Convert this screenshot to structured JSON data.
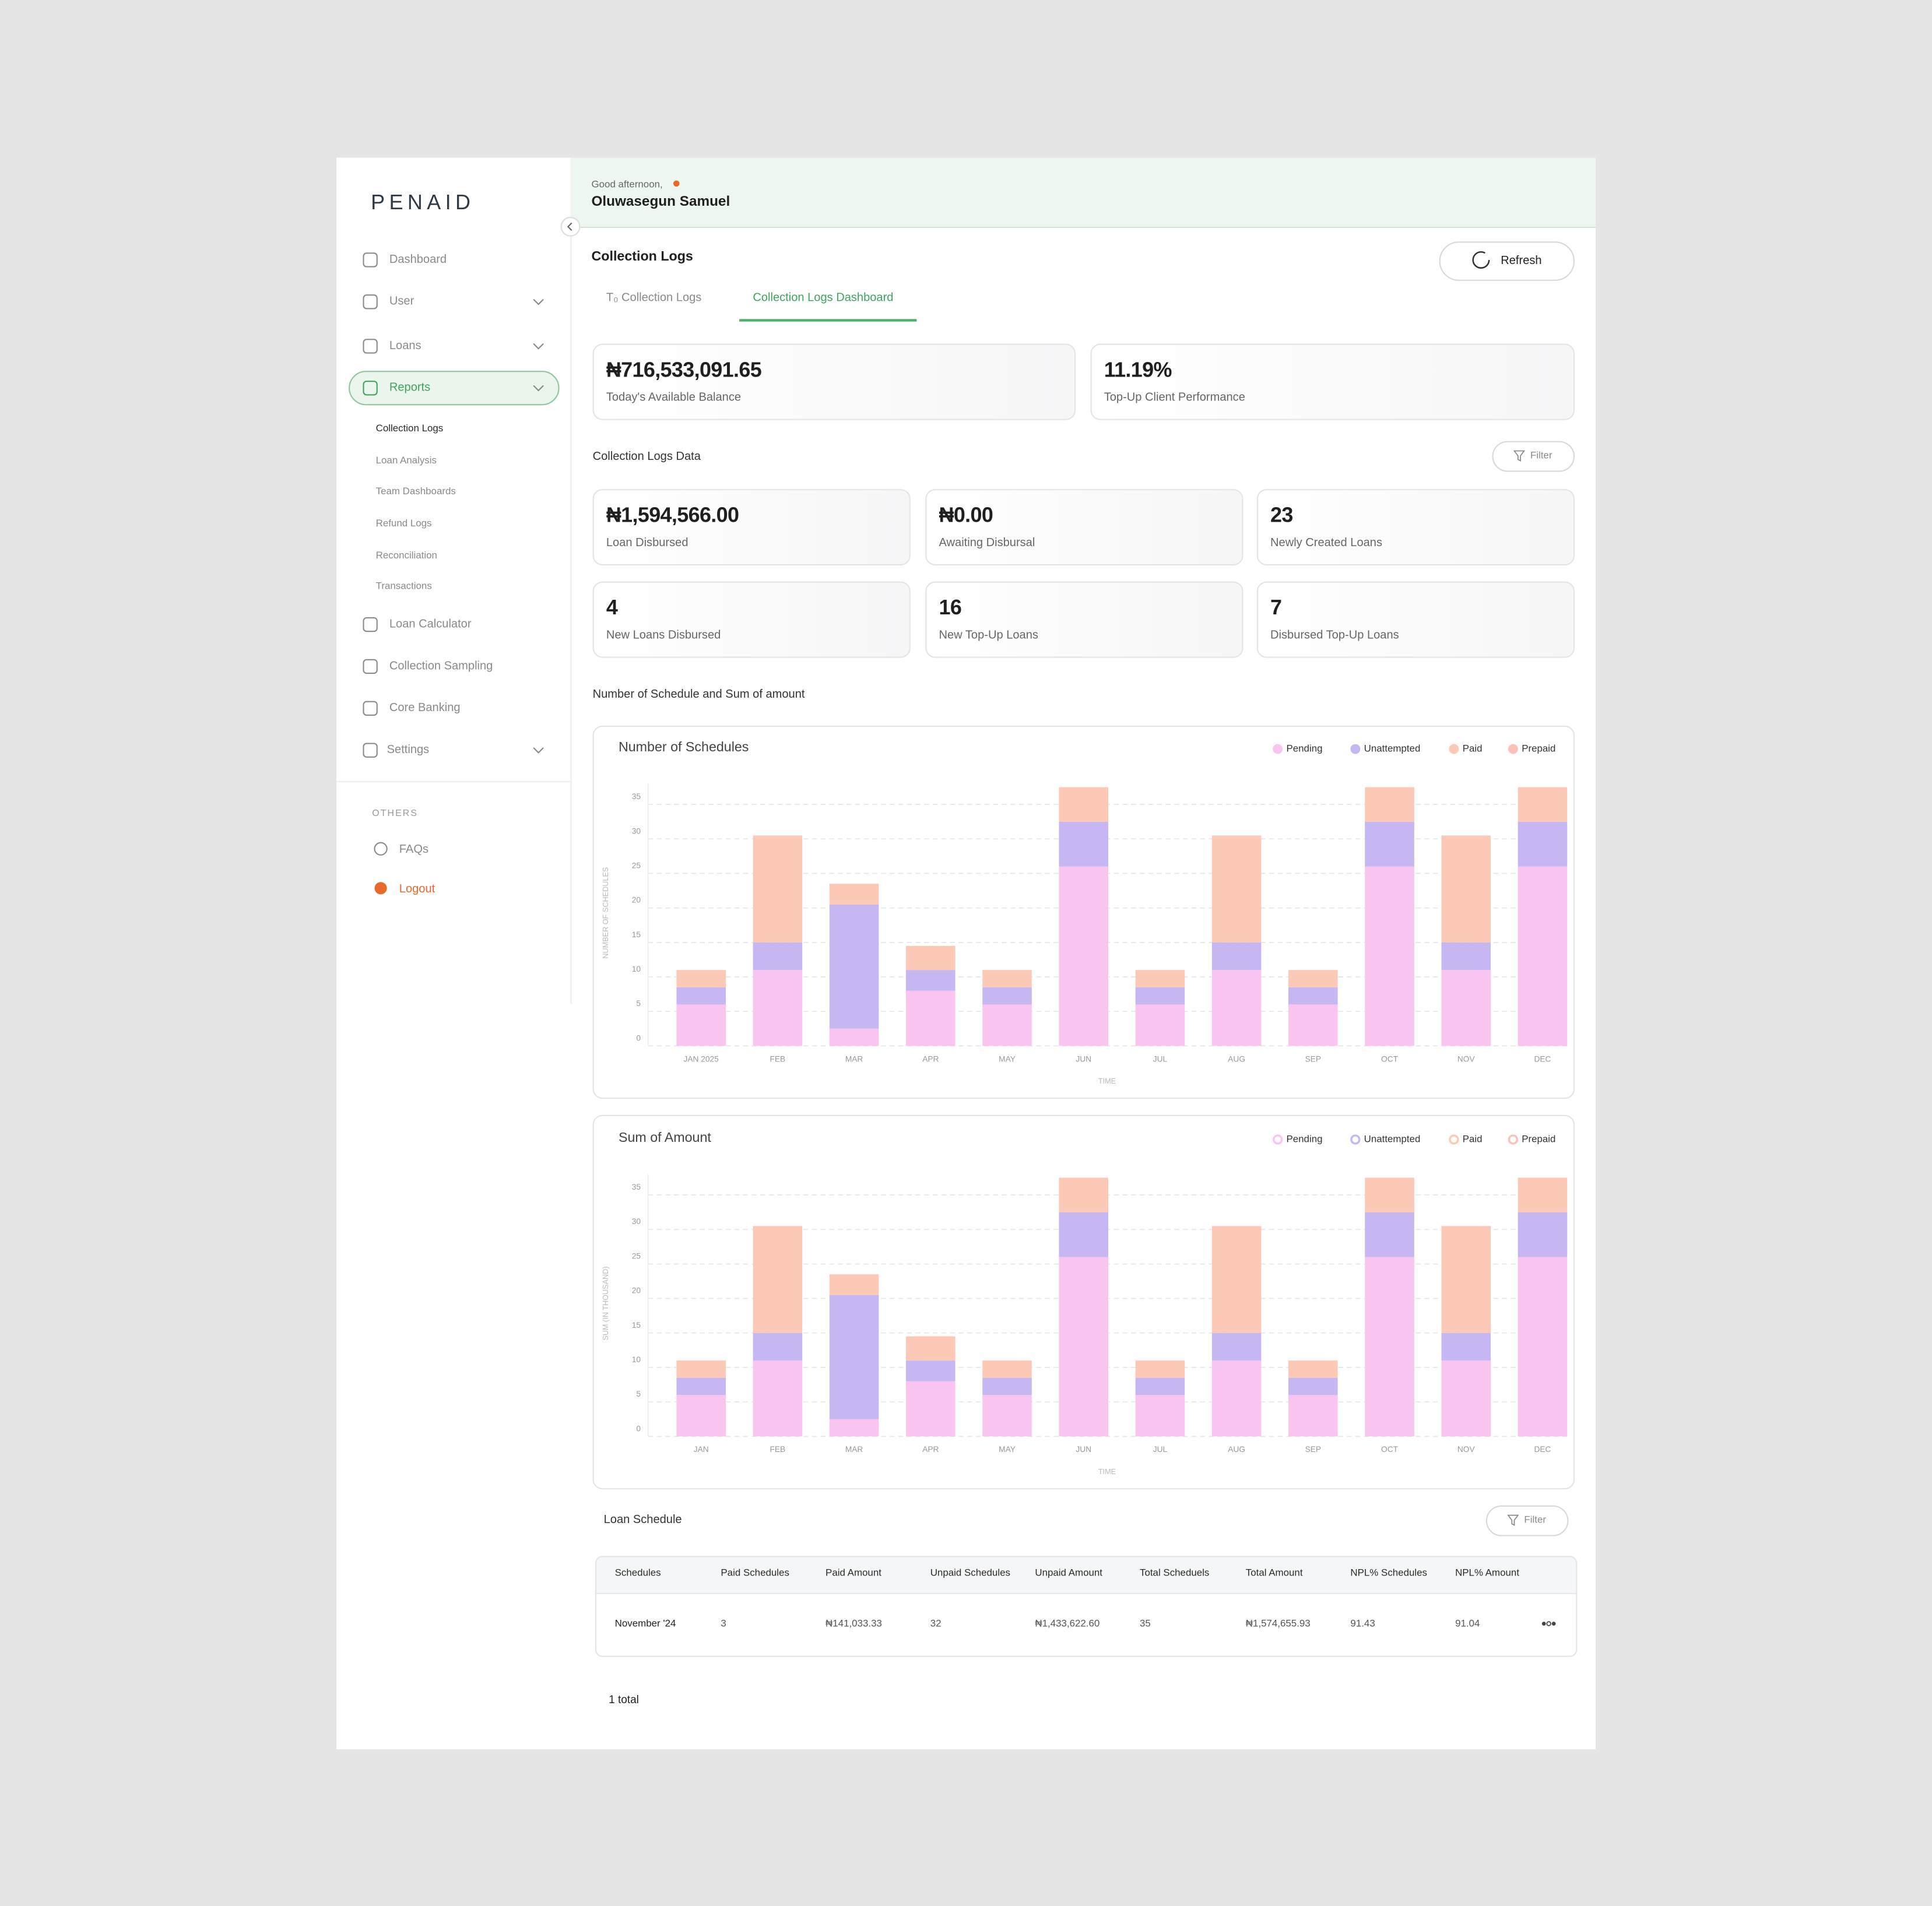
{
  "sidebar": {
    "brand": "PENAID",
    "nav_main": [
      "Dashboard",
      "User",
      "Loans",
      "Reports"
    ],
    "reports_sub": [
      "Collection Logs",
      "Loan Analysis",
      "Team Dashboards",
      "Refund Logs",
      "Reconciliation",
      "Transactions"
    ],
    "nav_more": [
      "Loan Calculator",
      "Collection Sampling",
      "Core Banking",
      "Settings"
    ],
    "others_heading": "OTHERS",
    "others": [
      "FAQs",
      "Logout"
    ]
  },
  "header": {
    "greeting": "Good afternoon,",
    "user_name": "Oluwasegun Samuel"
  },
  "page": {
    "title": "Collection Logs",
    "refresh": "Refresh",
    "tabs": [
      "T₀ Collection Logs",
      "Collection Logs Dashboard"
    ]
  },
  "summary": [
    {
      "value": "₦716,533,091.65",
      "label": "Today's Available Balance"
    },
    {
      "value": "11.19%",
      "label": "Top-Up Client Performance"
    }
  ],
  "section_title": "Collection Logs Data",
  "filter": "Filter",
  "stats": [
    {
      "value": "₦1,594,566.00",
      "label": "Loan Disbursed"
    },
    {
      "value": "₦0.00",
      "label": "Awaiting Disbursal"
    },
    {
      "value": "23",
      "label": "Newly Created Loans"
    },
    {
      "value": "4",
      "label": "New Loans Disbursed"
    },
    {
      "value": "16",
      "label": "New Top-Up Loans"
    },
    {
      "value": "7",
      "label": "Disbursed Top-Up Loans"
    }
  ],
  "charts_heading": "Number of Schedule and Sum of amount",
  "chart_data": [
    {
      "type": "bar",
      "stacked": true,
      "title": "Number of Schedules",
      "x_label": "TIME",
      "y_label": "NUMBER OF SCHEDULES",
      "legend": "top-right",
      "legend_marker": "filled",
      "grid": true,
      "categories": [
        "JAN 2025",
        "FEB",
        "MAR",
        "APR",
        "MAY",
        "JUN",
        "JUL",
        "AUG",
        "SEP",
        "OCT",
        "NOV",
        "DEC"
      ],
      "series": [
        {
          "name": "Pending",
          "color": "#f9c5f0",
          "values": [
            6,
            11,
            2.5,
            8,
            6,
            26,
            6,
            11,
            6,
            26,
            11,
            26
          ]
        },
        {
          "name": "Unattempted",
          "color": "#c6b6f1",
          "values": [
            2.5,
            4,
            18,
            3,
            2.5,
            6.5,
            2.5,
            4,
            2.5,
            6.5,
            4,
            6.5
          ]
        },
        {
          "name": "Paid",
          "color": "#fbc9b5",
          "values": [
            2.5,
            15.5,
            3,
            3.5,
            2.5,
            5,
            2.5,
            15.5,
            2.5,
            5,
            15.5,
            5
          ]
        },
        {
          "name": "Prepaid",
          "color": "#f8c2b8",
          "values": [
            0,
            0,
            0,
            0,
            0,
            0,
            0,
            0,
            0,
            0,
            0,
            0
          ]
        }
      ],
      "ylim": [
        0,
        38
      ],
      "yticks": [
        0,
        5,
        10,
        15,
        20,
        25,
        30,
        35
      ]
    },
    {
      "type": "bar",
      "stacked": true,
      "title": "Sum of Amount",
      "x_label": "TIME",
      "y_label": "SUM (IN THOUSAND)",
      "legend": "top-right",
      "legend_marker": "ring",
      "grid": true,
      "categories": [
        "JAN",
        "FEB",
        "MAR",
        "APR",
        "MAY",
        "JUN",
        "JUL",
        "AUG",
        "SEP",
        "OCT",
        "NOV",
        "DEC"
      ],
      "series": [
        {
          "name": "Pending",
          "color": "#f9c5f0",
          "values": [
            6,
            11,
            2.5,
            8,
            6,
            26,
            6,
            11,
            6,
            26,
            11,
            26
          ]
        },
        {
          "name": "Unattempted",
          "color": "#c6b6f1",
          "values": [
            2.5,
            4,
            18,
            3,
            2.5,
            6.5,
            2.5,
            4,
            2.5,
            6.5,
            4,
            6.5
          ]
        },
        {
          "name": "Paid",
          "color": "#fbc9b5",
          "values": [
            2.5,
            15.5,
            3,
            3.5,
            2.5,
            5,
            2.5,
            15.5,
            2.5,
            5,
            15.5,
            5
          ]
        },
        {
          "name": "Prepaid",
          "color": "#f8c2b8",
          "values": [
            0,
            0,
            0,
            0,
            0,
            0,
            0,
            0,
            0,
            0,
            0,
            0
          ]
        }
      ],
      "ylim": [
        0,
        38
      ],
      "yticks": [
        0,
        5,
        10,
        15,
        20,
        25,
        30,
        35
      ]
    }
  ],
  "table": {
    "title": "Loan Schedule",
    "filter": "Filter",
    "columns": [
      "Schedules",
      "Paid Schedules",
      "Paid Amount",
      "Unpaid Schedules",
      "Unpaid Amount",
      "Total Scheduels",
      "Total Amount",
      "NPL% Schedules",
      "NPL% Amount"
    ],
    "rows": [
      [
        "November '24",
        "3",
        "₦141,033.33",
        "32",
        "₦1,433,622.60",
        "35",
        "₦1,574,655.93",
        "91.43",
        "91.04"
      ]
    ],
    "total": "1 total"
  }
}
